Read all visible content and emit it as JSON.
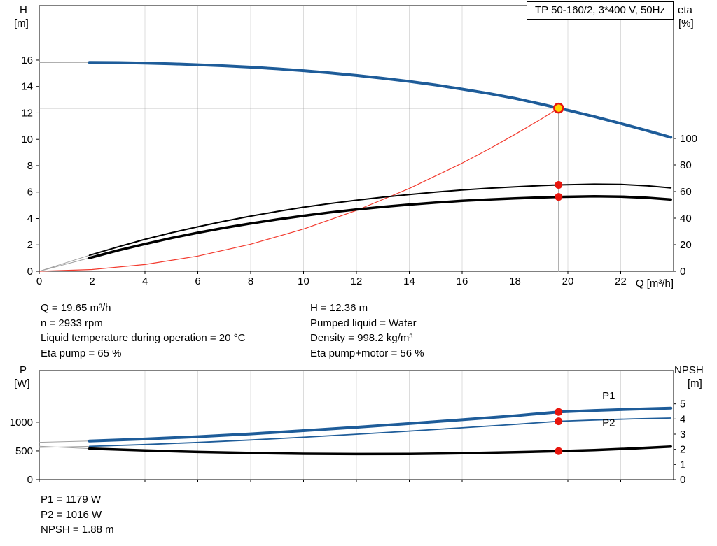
{
  "title_box": "TP 50-160/2, 3*400 V, 50Hz",
  "info_left": {
    "lines": [
      "Q = 19.65 m³/h",
      "n = 2933 rpm",
      "Liquid temperature during operation = 20 °C",
      "Eta pump = 65 %"
    ]
  },
  "info_right": {
    "lines": [
      "H = 12.36 m",
      "Pumped liquid = Water",
      "Density = 998.2 kg/m³",
      "Eta pump+motor = 56 %"
    ]
  },
  "info_bottom": {
    "lines": [
      "P1 = 1179 W",
      "P2 = 1016 W",
      "NPSH = 1.88 m"
    ]
  },
  "operating_point": {
    "Q_m3h": 19.65,
    "H_m": 12.36,
    "n_rpm": 2933,
    "eta_pump_pct": 65,
    "eta_pump_motor_pct": 56,
    "P1_W": 1179,
    "P2_W": 1016,
    "NPSH_m": 1.88,
    "liquid": "Water",
    "density_kgm3": 998.2,
    "liquid_temp_C": 20
  },
  "colors": {
    "curve_blue": "#1e5c99",
    "curve_black": "#000000",
    "system_red": "#f23a2e",
    "marker_red": "#e8150d",
    "marker_yellow": "#ffd400",
    "crosshair_gray": "#909090",
    "extension_gray": "#a0a0a0",
    "grid_gray": "#dcdcdc"
  },
  "chart_data": [
    {
      "type": "line",
      "name": "head-efficiency-chart",
      "axes": {
        "x": {
          "label": "Q [m³/h]",
          "min": 0,
          "max": 24,
          "ticks": [
            0,
            2,
            4,
            6,
            8,
            10,
            12,
            14,
            16,
            18,
            20,
            22
          ],
          "show_labels": true
        },
        "left": {
          "name": "H",
          "unit": "[m]",
          "min": 0,
          "max": 20.13,
          "ticks": [
            0,
            2,
            4,
            6,
            8,
            10,
            12,
            14,
            16
          ]
        },
        "right": {
          "name": "eta",
          "unit": "[%]",
          "min": 0,
          "max": 200,
          "ticks": [
            0,
            20,
            40,
            60,
            80,
            100
          ]
        }
      },
      "series": [
        {
          "name": "head-curve-extension",
          "axis": "left",
          "color": "#a0a0a0",
          "width": 1,
          "points": [
            [
              0,
              15.82
            ],
            [
              1.9,
              15.83
            ]
          ]
        },
        {
          "name": "eta-pump-extension",
          "axis": "right",
          "color": "#a0a0a0",
          "width": 1,
          "points": [
            [
              0,
              0
            ],
            [
              1.9,
              12
            ]
          ]
        },
        {
          "name": "eta-pump-motor-extension",
          "axis": "right",
          "color": "#a0a0a0",
          "width": 1,
          "points": [
            [
              0,
              0
            ],
            [
              1.9,
              10
            ]
          ]
        },
        {
          "name": "crosshair-vertical",
          "axis": "left",
          "color": "#909090",
          "width": 1,
          "points": [
            [
              19.65,
              0
            ],
            [
              19.65,
              12.36
            ]
          ]
        },
        {
          "name": "crosshair-horizontal",
          "axis": "left",
          "color": "#909090",
          "width": 1,
          "points": [
            [
              0,
              12.36
            ],
            [
              19.65,
              12.36
            ]
          ]
        },
        {
          "name": "system-curve",
          "axis": "left",
          "color": "#f23a2e",
          "width": 1.2,
          "points": [
            [
              0,
              0
            ],
            [
              2,
              0.13
            ],
            [
              4,
              0.51
            ],
            [
              6,
              1.15
            ],
            [
              8,
              2.05
            ],
            [
              10,
              3.2
            ],
            [
              12,
              4.61
            ],
            [
              14,
              6.27
            ],
            [
              16,
              8.19
            ],
            [
              17,
              9.25
            ],
            [
              18,
              10.37
            ],
            [
              19,
              11.55
            ],
            [
              19.65,
              12.36
            ]
          ]
        },
        {
          "name": "eta-pump-curve",
          "axis": "right",
          "color": "#000000",
          "width": 2,
          "points": [
            [
              1.9,
              12
            ],
            [
              3,
              18.5
            ],
            [
              4,
              24
            ],
            [
              5,
              29
            ],
            [
              6,
              33.5
            ],
            [
              7,
              37.7
            ],
            [
              8,
              41.5
            ],
            [
              9,
              45
            ],
            [
              10,
              48.2
            ],
            [
              11,
              51
            ],
            [
              12,
              53.5
            ],
            [
              13,
              55.8
            ],
            [
              14,
              57.8
            ],
            [
              15,
              59.6
            ],
            [
              16,
              61.2
            ],
            [
              17,
              62.5
            ],
            [
              18,
              63.6
            ],
            [
              19,
              64.5
            ],
            [
              19.65,
              65
            ],
            [
              21,
              65.6
            ],
            [
              22,
              65.4
            ],
            [
              23,
              64.3
            ],
            [
              23.9,
              62.8
            ]
          ]
        },
        {
          "name": "eta-pump-motor-curve",
          "axis": "right",
          "color": "#000000",
          "width": 3.5,
          "points": [
            [
              1.9,
              10
            ],
            [
              3,
              15.8
            ],
            [
              4,
              20.5
            ],
            [
              5,
              25
            ],
            [
              6,
              29
            ],
            [
              7,
              32.7
            ],
            [
              8,
              36
            ],
            [
              9,
              39
            ],
            [
              10,
              41.8
            ],
            [
              11,
              44.3
            ],
            [
              12,
              46.5
            ],
            [
              13,
              48.5
            ],
            [
              14,
              50.2
            ],
            [
              15,
              51.7
            ],
            [
              16,
              53
            ],
            [
              17,
              54
            ],
            [
              18,
              54.9
            ],
            [
              19,
              55.6
            ],
            [
              19.65,
              56
            ],
            [
              21,
              56.4
            ],
            [
              22,
              56.2
            ],
            [
              23,
              55.3
            ],
            [
              23.9,
              54
            ]
          ]
        },
        {
          "name": "pump-head-curve",
          "axis": "left",
          "color": "#1e5c99",
          "width": 4,
          "points": [
            [
              1.9,
              15.83
            ],
            [
              3,
              15.81
            ],
            [
              4,
              15.77
            ],
            [
              5,
              15.72
            ],
            [
              6,
              15.65
            ],
            [
              7,
              15.57
            ],
            [
              8,
              15.47
            ],
            [
              9,
              15.34
            ],
            [
              10,
              15.2
            ],
            [
              11,
              15.03
            ],
            [
              12,
              14.84
            ],
            [
              13,
              14.62
            ],
            [
              14,
              14.38
            ],
            [
              15,
              14.11
            ],
            [
              16,
              13.8
            ],
            [
              17,
              13.47
            ],
            [
              18,
              13.1
            ],
            [
              19,
              12.66
            ],
            [
              19.65,
              12.36
            ],
            [
              20,
              12.2
            ],
            [
              21,
              11.72
            ],
            [
              22,
              11.2
            ],
            [
              23,
              10.66
            ],
            [
              23.9,
              10.15
            ]
          ]
        }
      ],
      "markers": [
        {
          "name": "duty-point",
          "axis": "left",
          "x": 19.65,
          "y": 12.36,
          "r": 6.5,
          "fill": "#ffd400",
          "stroke": "#e8150d",
          "stroke_width": 2.5
        },
        {
          "name": "eta-pump-point",
          "axis": "right",
          "x": 19.65,
          "y": 65,
          "r": 5.5,
          "fill": "#e8150d"
        },
        {
          "name": "eta-pump-motor-point",
          "axis": "right",
          "x": 19.65,
          "y": 56,
          "r": 5.5,
          "fill": "#e8150d"
        }
      ],
      "labels": []
    },
    {
      "type": "line",
      "name": "power-npsh-chart",
      "axes": {
        "x": {
          "label": "",
          "min": 0,
          "max": 24,
          "ticks": [
            0,
            2,
            4,
            6,
            8,
            10,
            12,
            14,
            16,
            18,
            20,
            22
          ],
          "show_labels": false
        },
        "left": {
          "name": "P",
          "unit": "[W]",
          "min": 0,
          "max": 1900,
          "ticks": [
            0,
            500,
            1000
          ]
        },
        "right": {
          "name": "NPSH",
          "unit": "[m]",
          "min": 0,
          "max": 7.2,
          "ticks": [
            0,
            1,
            2,
            3,
            4,
            5
          ]
        }
      },
      "series": [
        {
          "name": "p1-extension",
          "axis": "left",
          "color": "#a0a0a0",
          "width": 1,
          "points": [
            [
              0,
              650
            ],
            [
              1.9,
              672
            ]
          ]
        },
        {
          "name": "p2-extension",
          "axis": "left",
          "color": "#a0a0a0",
          "width": 1,
          "points": [
            [
              0,
              560
            ],
            [
              1.9,
              580
            ]
          ]
        },
        {
          "name": "npsh-extension",
          "axis": "right",
          "color": "#a0a0a0",
          "width": 1,
          "points": [
            [
              0,
              2.2
            ],
            [
              1.9,
              2.05
            ]
          ]
        },
        {
          "name": "p2-curve",
          "axis": "left",
          "color": "#1e5c99",
          "width": 1.8,
          "points": [
            [
              1.9,
              580
            ],
            [
              4,
              612
            ],
            [
              6,
              648
            ],
            [
              8,
              690
            ],
            [
              10,
              738
            ],
            [
              12,
              790
            ],
            [
              14,
              845
            ],
            [
              16,
              903
            ],
            [
              18,
              962
            ],
            [
              19.65,
              1016
            ],
            [
              21,
              1038
            ],
            [
              22.5,
              1058
            ],
            [
              23.9,
              1072
            ]
          ]
        },
        {
          "name": "p1-curve",
          "axis": "left",
          "color": "#1e5c99",
          "width": 4,
          "points": [
            [
              1.9,
              672
            ],
            [
              4,
              708
            ],
            [
              6,
              748
            ],
            [
              8,
              797
            ],
            [
              10,
              852
            ],
            [
              12,
              912
            ],
            [
              14,
              975
            ],
            [
              16,
              1042
            ],
            [
              18,
              1112
            ],
            [
              19.65,
              1179
            ],
            [
              21,
              1205
            ],
            [
              22.5,
              1228
            ],
            [
              23.9,
              1245
            ]
          ]
        },
        {
          "name": "npsh-curve",
          "axis": "right",
          "color": "#000000",
          "width": 3.5,
          "points": [
            [
              1.9,
              2.05
            ],
            [
              4,
              1.93
            ],
            [
              6,
              1.83
            ],
            [
              8,
              1.76
            ],
            [
              10,
              1.71
            ],
            [
              12,
              1.69
            ],
            [
              14,
              1.7
            ],
            [
              16,
              1.74
            ],
            [
              18,
              1.81
            ],
            [
              19.65,
              1.88
            ],
            [
              21,
              1.95
            ],
            [
              22.5,
              2.06
            ],
            [
              23.9,
              2.18
            ]
          ]
        }
      ],
      "markers": [
        {
          "name": "p1-point",
          "axis": "left",
          "x": 19.65,
          "y": 1179,
          "r": 5.5,
          "fill": "#e8150d"
        },
        {
          "name": "p2-point",
          "axis": "left",
          "x": 19.65,
          "y": 1016,
          "r": 5.5,
          "fill": "#e8150d"
        },
        {
          "name": "npsh-point",
          "axis": "right",
          "x": 19.65,
          "y": 1.88,
          "r": 5.5,
          "fill": "#e8150d"
        }
      ],
      "labels": [
        {
          "text": "P1",
          "x": 21.3,
          "y": 1400,
          "axis": "left",
          "color": "#1e5c99"
        },
        {
          "text": "P2",
          "x": 21.3,
          "y": 930,
          "axis": "left",
          "color": "#1e5c99"
        }
      ]
    }
  ]
}
